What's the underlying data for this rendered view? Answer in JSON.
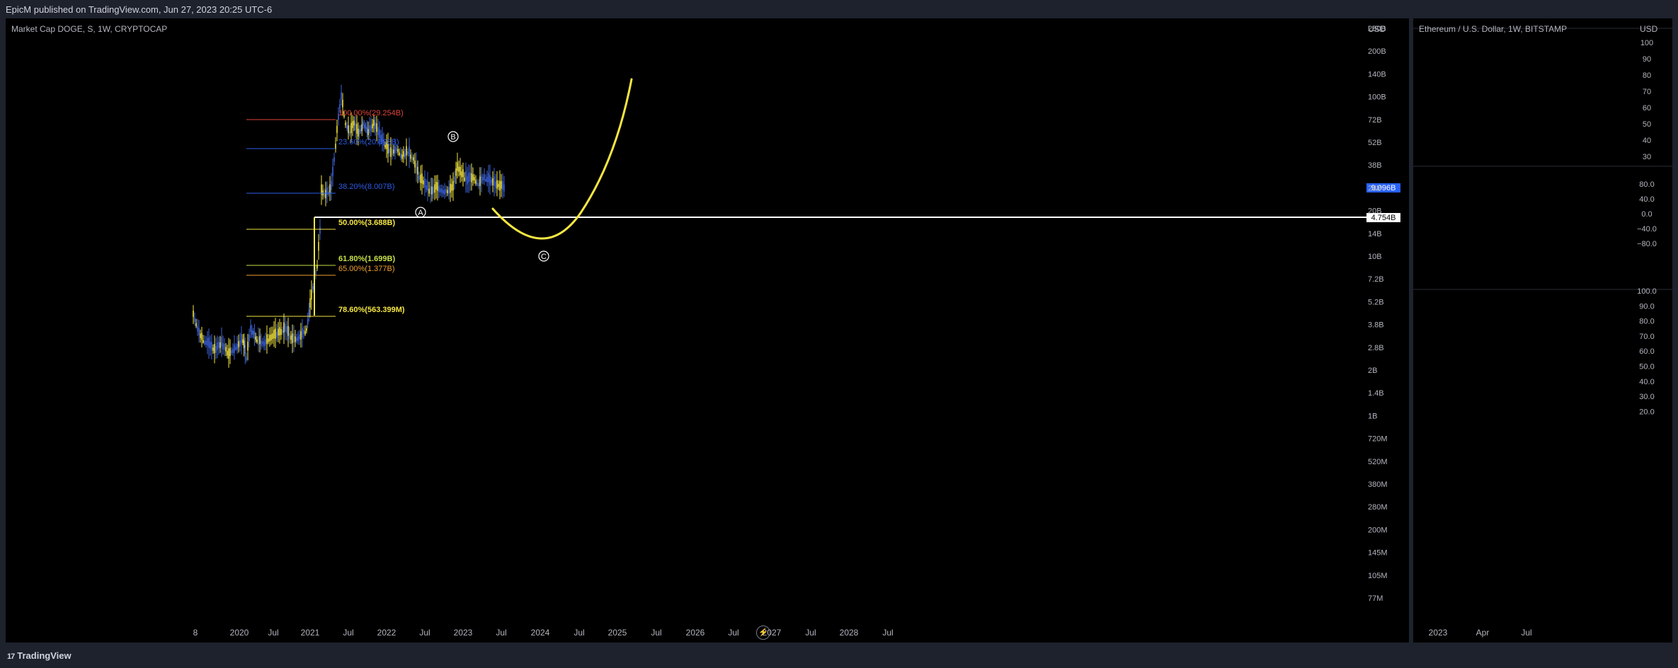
{
  "header": {
    "published": "EpicM published on TradingView.com, Jun 27, 2023 20:25 UTC-6"
  },
  "footer": {
    "brand": "TradingView",
    "mark": "17"
  },
  "colors": {
    "up": "#f5e642",
    "down": "#3b62d9",
    "fib_red": "#e0453a",
    "fib_blue": "#2e5ce6",
    "fib_yellow": "#f5e642",
    "fib_green": "#c6e04a",
    "fib_orange": "#f0a030",
    "hline": "#ffffff",
    "projection": "#f5e642",
    "price_badge": "#2962ff"
  },
  "left_chart": {
    "title": "Market Cap DOGE, S, 1W, CRYPTOCAP",
    "currency": "USD",
    "price_labels": [
      "280B",
      "200B",
      "140B",
      "100B",
      "72B",
      "52B",
      "38B",
      "28B",
      "20B",
      "14B",
      "10B",
      "7.2B",
      "5.2B",
      "3.8B",
      "2.8B",
      "2B",
      "1.4B",
      "1B",
      "720M",
      "520M",
      "380M",
      "280M",
      "200M",
      "145M",
      "105M",
      "77M"
    ],
    "time_labels": [
      "8",
      "2020",
      "Jul",
      "2021",
      "Jul",
      "2022",
      "Jul",
      "2023",
      "Jul",
      "2024",
      "Jul",
      "2025",
      "Jul",
      "2026",
      "Jul",
      "2027",
      "Jul",
      "2028",
      "Jul"
    ],
    "current_price": "9.096B",
    "hline_price": "4.754B",
    "fib_levels": [
      {
        "label": "100.00%(29.254B)",
        "color": "fib_red"
      },
      {
        "label": "23.60%(20.893B)",
        "color": "fib_blue"
      },
      {
        "label": "38.20%(8.007B)",
        "color": "fib_blue"
      },
      {
        "label": "50.00%(3.688B)",
        "color": "fib_yellow"
      },
      {
        "label": "61.80%(1.699B)",
        "color": "fib_green"
      },
      {
        "label": "65.00%(1.377B)",
        "color": "fib_orange"
      },
      {
        "label": "78.60%(563.399M)",
        "color": "fib_yellow"
      }
    ],
    "wave_labels": [
      "A",
      "B",
      "C"
    ]
  },
  "right_chart": {
    "title": "Ethereum / U.S. Dollar, 1W, BITSTAMP",
    "currency": "USD",
    "panel1_labels": [
      "100",
      "90",
      "80",
      "70",
      "60",
      "50",
      "40",
      "30"
    ],
    "panel2_labels": [
      "80.0",
      "40.0",
      "0.0",
      "−40.0",
      "−80.0"
    ],
    "panel3_labels": [
      "100.0",
      "90.0",
      "80.0",
      "70.0",
      "60.0",
      "50.0",
      "40.0",
      "30.0",
      "20.0"
    ],
    "time_labels": [
      "2023",
      "Apr",
      "Jul"
    ]
  }
}
